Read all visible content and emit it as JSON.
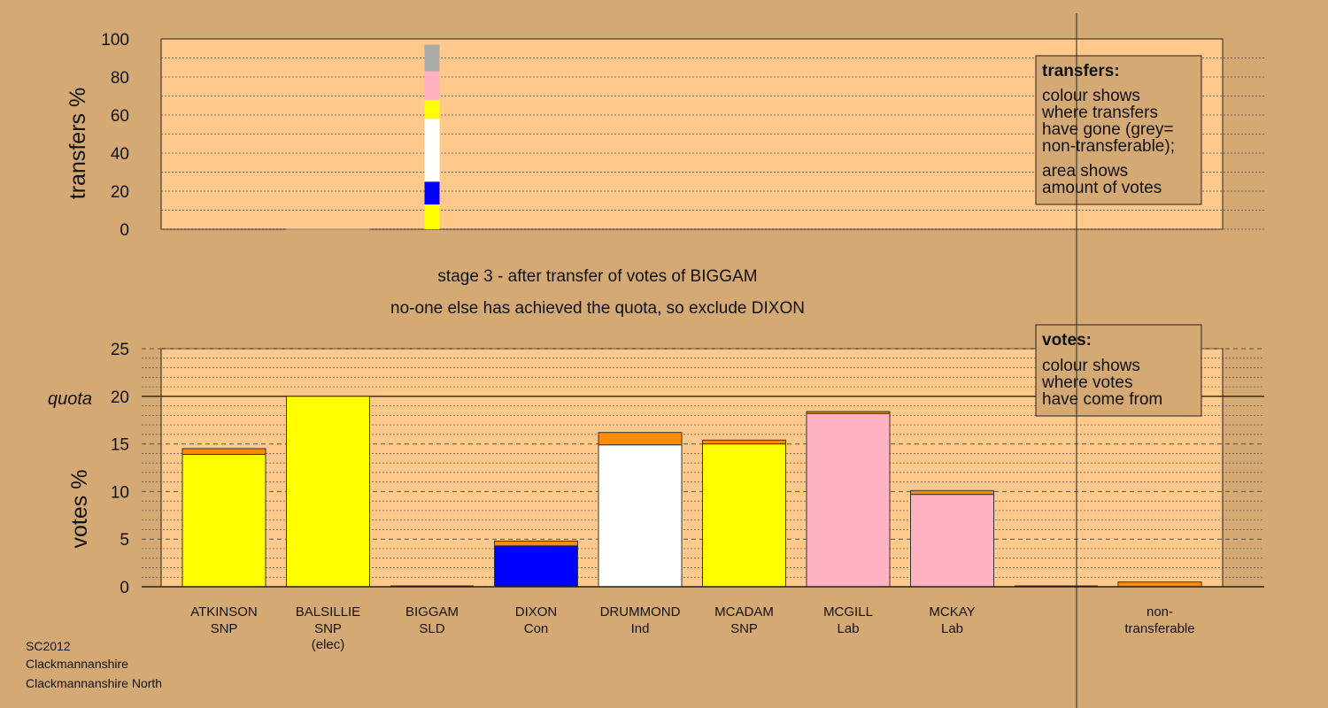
{
  "stage": {
    "line1": "stage 3 - after transfer of votes of BIGGAM",
    "line2": "no-one else has achieved the quota, so exclude DIXON"
  },
  "footer": {
    "election": "SC2012",
    "council": "Clackmannanshire",
    "ward": "Clackmannanshire North"
  },
  "legend_transfers": {
    "title": "transfers:",
    "lines": [
      "colour shows",
      "where transfers",
      "have gone (grey=",
      "non-transferable);",
      "area shows",
      "amount of votes"
    ]
  },
  "legend_votes": {
    "title": "votes:",
    "lines": [
      "colour shows",
      "where votes",
      "have come from"
    ]
  },
  "colors": {
    "background": "#d4a974",
    "plot_bg": "#ffc98c",
    "SNP": "#ffff00",
    "Con": "#0000ff",
    "Ind": "#ffffff",
    "Lab": "#ffb2c2",
    "SLD": "#ffff00",
    "transfer_in": "#ff8c00",
    "non_transferable": "#aaaaaa"
  },
  "chart_data": [
    {
      "type": "bar",
      "stacked": true,
      "ylabel": "transfers %",
      "ylim": [
        0,
        100
      ],
      "yticks": [
        0,
        20,
        40,
        60,
        80,
        100
      ],
      "transfers_from": "BIGGAM",
      "segments": [
        {
          "to": "ATKINSON",
          "party": "SNP",
          "color": "#ffff00",
          "value": 13
        },
        {
          "to": "DIXON",
          "party": "Con",
          "color": "#0000ff",
          "value": 12
        },
        {
          "to": "DRUMMOND",
          "party": "Ind",
          "color": "#ffffff",
          "value": 33
        },
        {
          "to": "MCADAM",
          "party": "SNP",
          "color": "#ffff00",
          "value": 10
        },
        {
          "to": "MCGILL",
          "party": "Lab",
          "color": "#ffb2c2",
          "value": 3
        },
        {
          "to": "MCKAY",
          "party": "Lab",
          "color": "#ffb2c2",
          "value": 12
        },
        {
          "to": "non-transferable",
          "party": "",
          "color": "#aaaaaa",
          "value": 14
        }
      ]
    },
    {
      "type": "bar",
      "stacked": true,
      "ylabel": "votes %",
      "ylim": [
        0,
        25
      ],
      "yticks": [
        0,
        5,
        10,
        15,
        20,
        25
      ],
      "quota": 20,
      "quota_label": "quota",
      "candidates": [
        {
          "name": "ATKINSON",
          "party": "SNP",
          "note": "",
          "color": "#ffff00",
          "base": 13.9,
          "transferred": 0.6
        },
        {
          "name": "BALSILLIE",
          "party": "SNP",
          "note": "(elec)",
          "color": "#ffff00",
          "base": 20.0,
          "transferred": 0
        },
        {
          "name": "BIGGAM",
          "party": "SLD",
          "note": "",
          "color": "#ffff00",
          "base": 0,
          "transferred": 0
        },
        {
          "name": "DIXON",
          "party": "Con",
          "note": "",
          "color": "#0000ff",
          "base": 4.3,
          "transferred": 0.5
        },
        {
          "name": "DRUMMOND",
          "party": "Ind",
          "note": "",
          "color": "#ffffff",
          "base": 14.9,
          "transferred": 1.3
        },
        {
          "name": "MCADAM",
          "party": "SNP",
          "note": "",
          "color": "#ffff00",
          "base": 15.0,
          "transferred": 0.4
        },
        {
          "name": "MCGILL",
          "party": "Lab",
          "note": "",
          "color": "#ffb2c2",
          "base": 18.2,
          "transferred": 0.2
        },
        {
          "name": "MCKAY",
          "party": "Lab",
          "note": "",
          "color": "#ffb2c2",
          "base": 9.7,
          "transferred": 0.4
        }
      ],
      "non_transferable": {
        "name": "non-",
        "name2": "transferable",
        "value": 0.5,
        "color": "#ff8c00"
      }
    }
  ]
}
